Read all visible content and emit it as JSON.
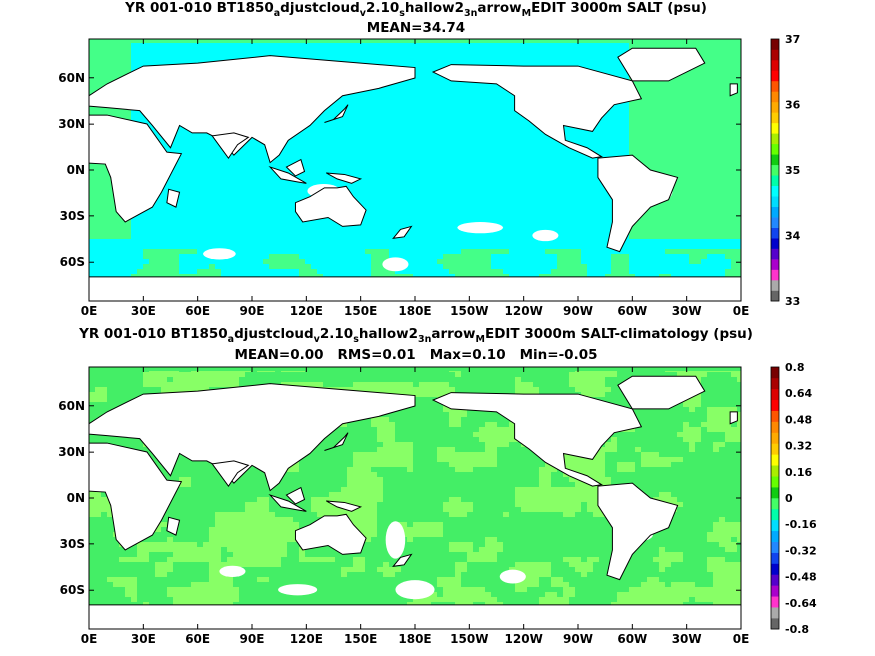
{
  "chart_data": [
    {
      "type": "heatmap",
      "title_parts": [
        "YR 001-010 BT1850",
        "a",
        "djustcloud",
        "v",
        "2.10",
        "s",
        "hallow2",
        "3n",
        "arrow",
        "M",
        "EDIT 3000m SALT (psu)"
      ],
      "subtitle": "MEAN=34.74",
      "x_ticks": [
        "0E",
        "30E",
        "60E",
        "90E",
        "120E",
        "150E",
        "180E",
        "150W",
        "120W",
        "90W",
        "60W",
        "30W",
        "0E"
      ],
      "y_ticks": [
        "60N",
        "30N",
        "0N",
        "30S",
        "60S"
      ],
      "colorbar_labels": [
        "37",
        "36",
        "35",
        "34",
        "33"
      ],
      "colorbar_range": [
        33,
        37
      ],
      "colorbar_colors": [
        "#666666",
        "#aaaaaa",
        "#ff33cc",
        "#aa00cc",
        "#5500cc",
        "#0000cc",
        "#1144ee",
        "#2288ff",
        "#00aaff",
        "#00ddff",
        "#00ffff",
        "#00ffaa",
        "#44ff66",
        "#11cc11",
        "#66ff00",
        "#aaee00",
        "#ffff00",
        "#ffcc00",
        "#ffaa00",
        "#ff8800",
        "#ff5500",
        "#ff0000",
        "#dd0000",
        "#aa0000",
        "#770000"
      ],
      "dominant_colors": {
        "pacific_indian": "#00ffff",
        "atlantic": "#44ff88",
        "land": "#ffffff"
      }
    },
    {
      "type": "heatmap",
      "title_parts": [
        "YR 001-010 BT1850",
        "a",
        "djustcloud",
        "v",
        "2.10",
        "s",
        "hallow2",
        "3n",
        "arrow",
        "M",
        "EDIT 3000m SALT-climatology (psu)"
      ],
      "stats": [
        "MEAN=0.00",
        "RMS=0.01",
        "Max=0.10",
        "Min=-0.05"
      ],
      "x_ticks": [
        "0E",
        "30E",
        "60E",
        "90E",
        "120E",
        "150E",
        "180E",
        "150W",
        "120W",
        "90W",
        "60W",
        "30W",
        "0E"
      ],
      "y_ticks": [
        "60N",
        "30N",
        "0N",
        "30S",
        "60S"
      ],
      "colorbar_labels": [
        "0.8",
        "0.64",
        "0.48",
        "0.32",
        "0.16",
        "0",
        "-0.16",
        "-0.32",
        "-0.48",
        "-0.64",
        "-0.8"
      ],
      "colorbar_range": [
        -0.8,
        0.8
      ],
      "colorbar_colors": [
        "#666666",
        "#aaaaaa",
        "#ff33cc",
        "#aa00cc",
        "#5500cc",
        "#0000cc",
        "#1144ee",
        "#2288ff",
        "#00aaff",
        "#00ddff",
        "#00ffaa",
        "#44ff66",
        "#11cc11",
        "#66ff00",
        "#aaee00",
        "#ffff00",
        "#ffcc00",
        "#ffaa00",
        "#ff8800",
        "#ff5500",
        "#ff0000",
        "#dd0000",
        "#aa0000",
        "#770000"
      ],
      "dominant_colors": {
        "low": "#44ee66",
        "high": "#88ff66",
        "land": "#ffffff"
      }
    }
  ]
}
